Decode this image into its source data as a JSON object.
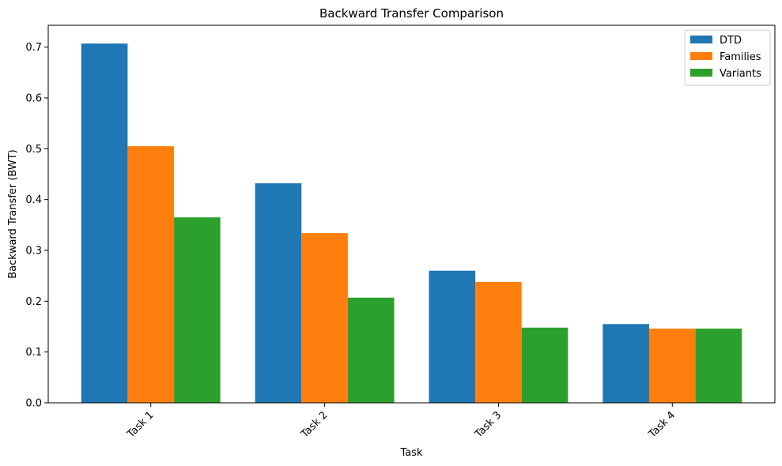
{
  "chart_data": {
    "type": "bar",
    "title": "Backward Transfer Comparison",
    "xlabel": "Task",
    "ylabel": "Backward Transfer (BWT)",
    "categories": [
      "Task 1",
      "Task 2",
      "Task 3",
      "Task 4"
    ],
    "series": [
      {
        "name": "DTD",
        "values": [
          0.707,
          0.432,
          0.26,
          0.155
        ],
        "color": "#1f77b4"
      },
      {
        "name": "Families",
        "values": [
          0.505,
          0.334,
          0.238,
          0.146
        ],
        "color": "#ff7f0e"
      },
      {
        "name": "Variants",
        "values": [
          0.365,
          0.207,
          0.148,
          0.146
        ],
        "color": "#2ca02c"
      }
    ],
    "ylim": [
      0,
      0.743
    ],
    "yticks": [
      "0.0",
      "0.1",
      "0.2",
      "0.3",
      "0.4",
      "0.5",
      "0.6",
      "0.7"
    ],
    "grid": false,
    "legend_position": "top-right"
  }
}
